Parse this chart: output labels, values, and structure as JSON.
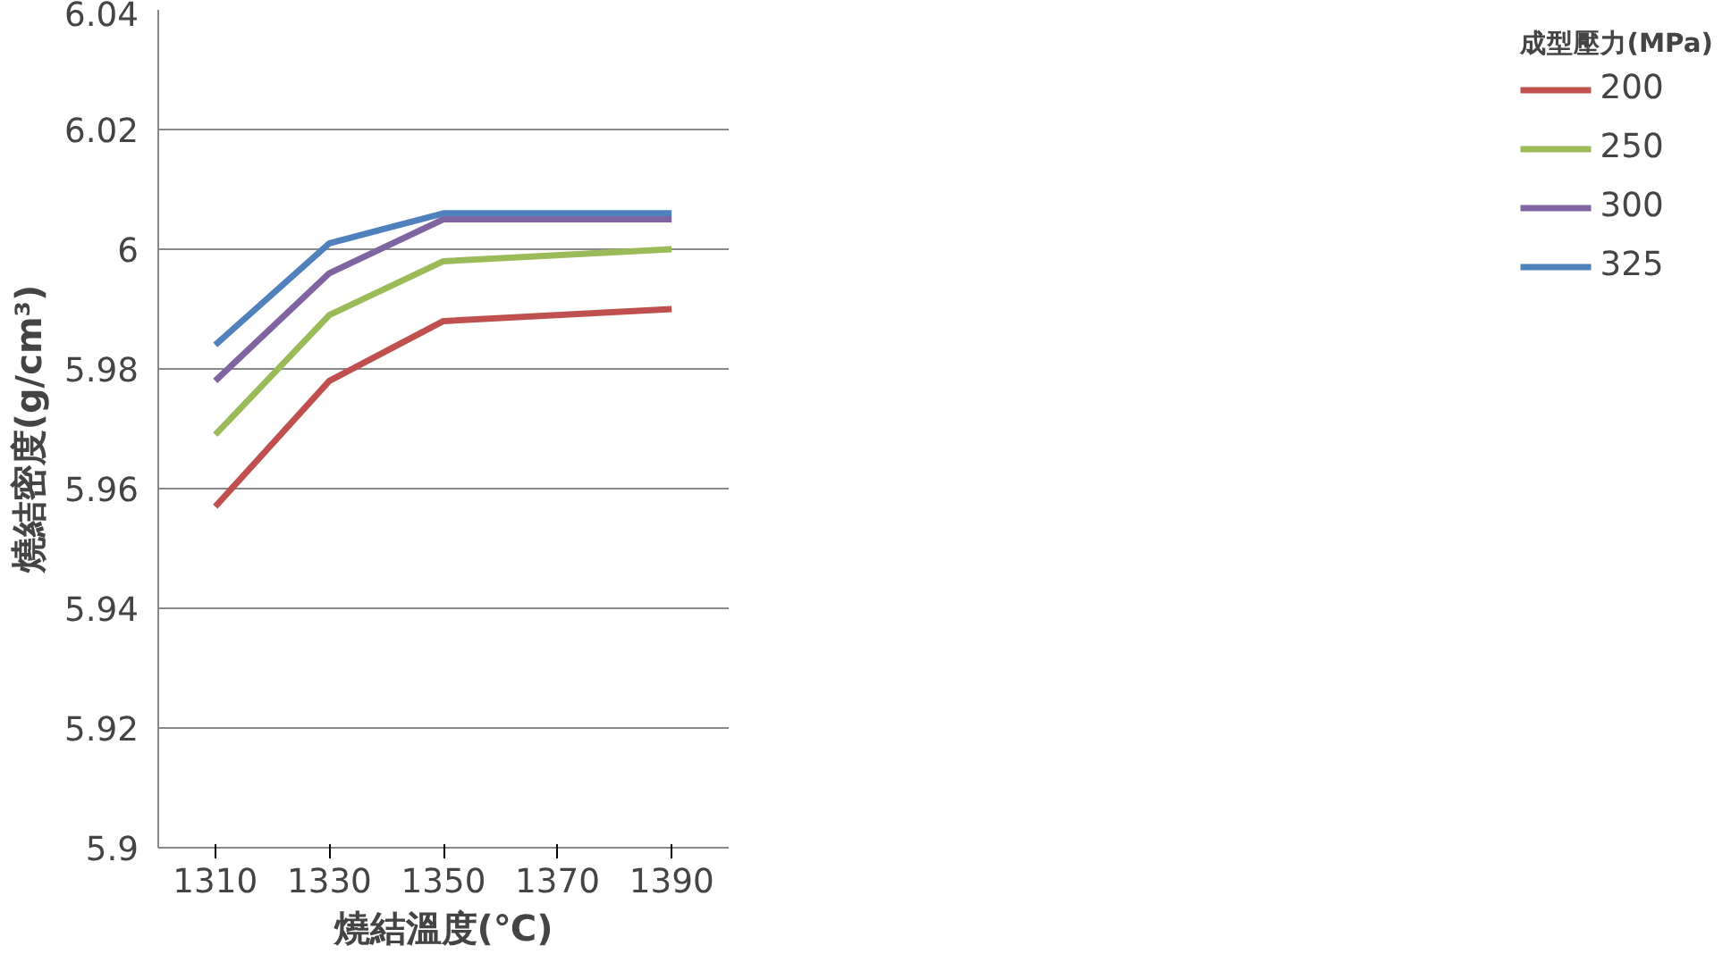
{
  "chart_data": {
    "type": "line",
    "xlabel": "燒結溫度(℃)",
    "ylabel": "燒結密度(g/cm³)",
    "legend_title": "成型壓力(MPa)",
    "x": [
      1310,
      1330,
      1350,
      1390
    ],
    "series": [
      {
        "name": "200",
        "color": "#c0504d",
        "values": [
          5.957,
          5.978,
          5.988,
          5.99
        ]
      },
      {
        "name": "250",
        "color": "#9bbb59",
        "values": [
          5.969,
          5.989,
          5.998,
          6.0
        ]
      },
      {
        "name": "300",
        "color": "#8064a2",
        "values": [
          5.978,
          5.996,
          6.005,
          6.005
        ]
      },
      {
        "name": "325",
        "color": "#4f81bd",
        "values": [
          5.984,
          6.001,
          6.006,
          6.006
        ]
      }
    ],
    "xlim": [
      1300,
      1400
    ],
    "xticks": [
      1310,
      1330,
      1350,
      1370,
      1390
    ],
    "ylim": [
      5.9,
      6.04
    ],
    "yticks": [
      {
        "value": 5.9,
        "label": "5.9"
      },
      5.92,
      5.94,
      5.96,
      5.98,
      {
        "value": 6.0,
        "label": "6"
      },
      6.02,
      6.04
    ],
    "grid": "y",
    "legend": "right",
    "marker": "none",
    "line_style": "solid"
  }
}
